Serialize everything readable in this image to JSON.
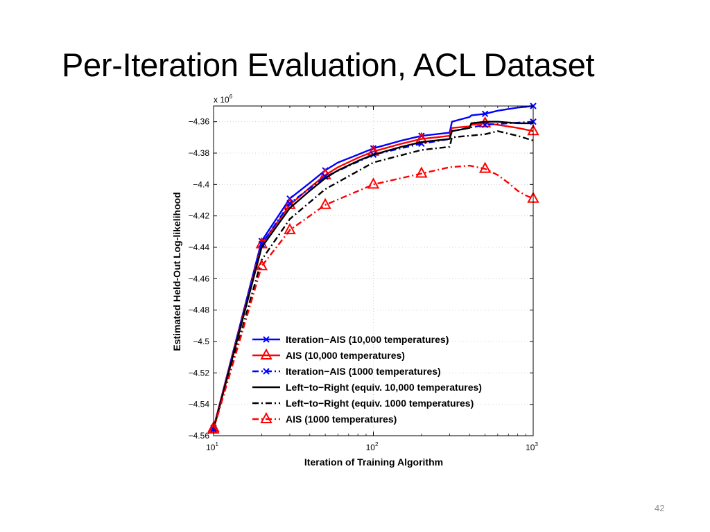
{
  "slide": {
    "title": "Per-Iteration Evaluation, ACL Dataset",
    "page_number": "42"
  },
  "chart_data": {
    "type": "line",
    "xlabel": "Iteration of Training Algorithm",
    "ylabel": "Estimated Held-Out Log-likelihood",
    "y_multiplier_label": "x 10^6",
    "x_scale": "log",
    "xlim": [
      10,
      1000
    ],
    "ylim": [
      -4.56,
      -4.35
    ],
    "x_ticks": [
      10,
      100,
      1000
    ],
    "x_tick_labels": [
      {
        "base": "10",
        "exp": "1"
      },
      {
        "base": "10",
        "exp": "2"
      },
      {
        "base": "10",
        "exp": "3"
      }
    ],
    "y_ticks": [
      -4.36,
      -4.38,
      -4.4,
      -4.42,
      -4.44,
      -4.46,
      -4.48,
      -4.5,
      -4.52,
      -4.54,
      -4.56
    ],
    "y_tick_labels": [
      "−4.36",
      "−4.38",
      "−4.4",
      "−4.42",
      "−4.44",
      "−4.46",
      "−4.48",
      "−4.5",
      "−4.52",
      "−4.54",
      "−4.56"
    ],
    "legend_position": "lower-right",
    "series": [
      {
        "name": "Iteration−AIS (10,000 temperatures)",
        "color": "#0000ff",
        "dash": "solid",
        "marker": "x",
        "x": [
          10,
          20,
          30,
          40,
          50,
          60,
          80,
          100,
          150,
          200,
          300,
          310,
          400,
          410,
          500,
          600,
          800,
          1000
        ],
        "y": [
          -4.555,
          -4.436,
          -4.409,
          -4.399,
          -4.391,
          -4.386,
          -4.381,
          -4.377,
          -4.372,
          -4.369,
          -4.367,
          -4.36,
          -4.357,
          -4.356,
          -4.355,
          -4.353,
          -4.351,
          -4.35
        ]
      },
      {
        "name": "AIS (10,000 temperatures)",
        "color": "#ff0000",
        "dash": "solid",
        "marker": "triangle",
        "x": [
          10,
          20,
          30,
          40,
          50,
          60,
          80,
          100,
          150,
          200,
          300,
          310,
          400,
          410,
          500,
          600,
          800,
          1000
        ],
        "y": [
          -4.555,
          -4.438,
          -4.413,
          -4.402,
          -4.394,
          -4.389,
          -4.383,
          -4.379,
          -4.374,
          -4.371,
          -4.369,
          -4.364,
          -4.363,
          -4.362,
          -4.361,
          -4.362,
          -4.364,
          -4.366
        ]
      },
      {
        "name": "Iteration−AIS (1000 temperatures)",
        "color": "#0000ff",
        "dash": "dashdot",
        "marker": "x",
        "x": [
          10,
          20,
          30,
          50,
          100,
          200,
          300,
          310,
          500,
          700,
          1000
        ],
        "y": [
          -4.556,
          -4.438,
          -4.412,
          -4.395,
          -4.381,
          -4.374,
          -4.371,
          -4.366,
          -4.362,
          -4.361,
          -4.36
        ]
      },
      {
        "name": "Left−to−Right (equiv. 10,000 temperatures)",
        "color": "#000000",
        "dash": "solid",
        "marker": "none",
        "x": [
          10,
          20,
          30,
          40,
          50,
          60,
          80,
          100,
          150,
          200,
          300,
          310,
          400,
          410,
          500,
          600,
          800,
          1000
        ],
        "y": [
          -4.556,
          -4.44,
          -4.415,
          -4.404,
          -4.396,
          -4.391,
          -4.385,
          -4.381,
          -4.376,
          -4.373,
          -4.371,
          -4.366,
          -4.364,
          -4.361,
          -4.36,
          -4.36,
          -4.361,
          -4.361
        ]
      },
      {
        "name": "Left−to−Right (equiv. 1000 temperatures)",
        "color": "#000000",
        "dash": "dashdot",
        "marker": "none",
        "x": [
          10,
          20,
          30,
          50,
          100,
          200,
          300,
          310,
          500,
          600,
          800,
          1000
        ],
        "y": [
          -4.556,
          -4.448,
          -4.422,
          -4.403,
          -4.386,
          -4.378,
          -4.376,
          -4.37,
          -4.368,
          -4.366,
          -4.369,
          -4.372
        ]
      },
      {
        "name": "AIS (1000 temperatures)",
        "color": "#ff0000",
        "dash": "dashdot",
        "marker": "triangle",
        "x": [
          10,
          20,
          30,
          50,
          100,
          200,
          300,
          400,
          500,
          600,
          700,
          800,
          900,
          1000
        ],
        "y": [
          -4.556,
          -4.452,
          -4.429,
          -4.413,
          -4.4,
          -4.393,
          -4.389,
          -4.388,
          -4.39,
          -4.394,
          -4.399,
          -4.404,
          -4.407,
          -4.409
        ]
      }
    ]
  }
}
